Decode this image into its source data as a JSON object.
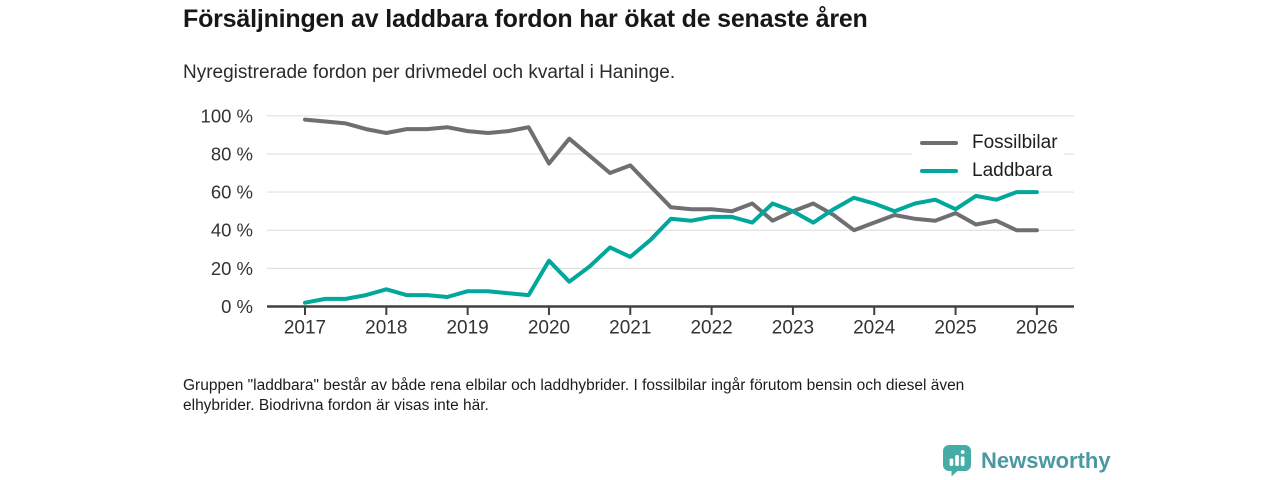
{
  "chart_data": {
    "type": "line",
    "title": "Försäljningen av laddbara fordon har ökat de senaste åren",
    "subtitle": "Nyregistrerade fordon per drivmedel och kvartal i Haninge.",
    "xlabel": "",
    "ylabel": "",
    "x_interval": "quarter",
    "x_start_quarter": "2017-Q1",
    "x_end_quarter": "2026-Q1",
    "x_tick_labels": [
      "2017",
      "2018",
      "2019",
      "2020",
      "2021",
      "2022",
      "2023",
      "2024",
      "2025",
      "2026"
    ],
    "y_tick_values": [
      0,
      20,
      40,
      60,
      80,
      100
    ],
    "y_tick_labels": [
      "0 %",
      "20 %",
      "40 %",
      "60 %",
      "80 %",
      "100 %"
    ],
    "ylim": [
      0,
      100
    ],
    "grid": "horizontal",
    "legend_position": "top-right",
    "series": [
      {
        "name": "Fossilbilar",
        "color": "#6f6f73",
        "values": [
          98,
          97,
          96,
          93,
          91,
          93,
          93,
          94,
          92,
          91,
          92,
          94,
          75,
          88,
          79,
          70,
          74,
          63,
          52,
          51,
          51,
          50,
          54,
          45,
          50,
          54,
          48,
          40,
          44,
          48,
          46,
          45,
          49,
          43,
          45,
          40,
          40
        ]
      },
      {
        "name": "Laddbara",
        "color": "#00a79b",
        "values": [
          2,
          4,
          4,
          6,
          9,
          6,
          6,
          5,
          8,
          8,
          7,
          6,
          24,
          13,
          21,
          31,
          26,
          35,
          46,
          45,
          47,
          47,
          44,
          54,
          50,
          44,
          51,
          57,
          54,
          50,
          54,
          56,
          51,
          58,
          56,
          60,
          60
        ]
      }
    ],
    "note": "Gruppen \"laddbara\" består av både rena elbilar och laddhybrider. I fossilbilar ingår förutom bensin och diesel även\nelhybrider. Biodrivna fordon är visas inte här."
  },
  "branding": {
    "logo_text": "Newsworthy",
    "wordmark_color": "#4a99a2",
    "icon_color": "#46ada6",
    "icon": "bar-chart-pin-icon"
  }
}
